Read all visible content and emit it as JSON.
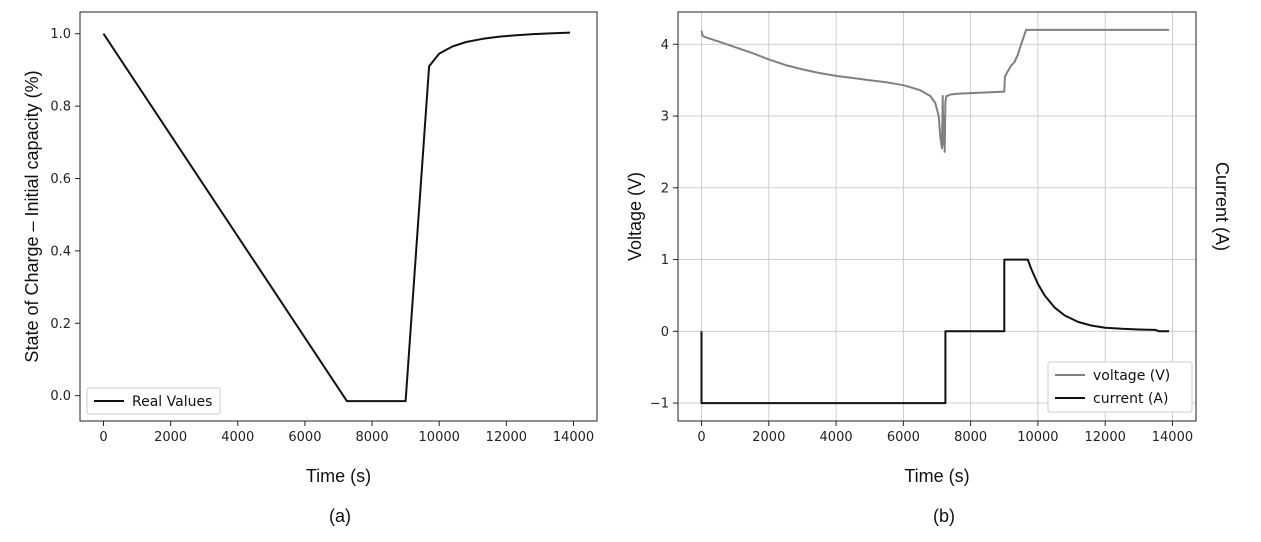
{
  "chart_data": [
    {
      "type": "line",
      "panel_label": "(a)",
      "xlabel": "Time (s)",
      "ylabel": "State of Charge – Initial capacity (%)",
      "xlim": [
        -700,
        14700
      ],
      "ylim": [
        -0.07,
        1.06
      ],
      "xticks": [
        0,
        2000,
        4000,
        6000,
        8000,
        10000,
        12000,
        14000
      ],
      "yticks": [
        0.0,
        0.2,
        0.4,
        0.6,
        0.8,
        1.0
      ],
      "ytick_labels": [
        "0.0",
        "0.2",
        "0.4",
        "0.6",
        "0.8",
        "1.0"
      ],
      "grid": false,
      "legend_position": "lower-left",
      "series": [
        {
          "name": "Real Values",
          "color": "#111111",
          "x": [
            0,
            7250,
            9000,
            9700,
            10000,
            10400,
            10800,
            11300,
            11800,
            12300,
            12800,
            13300,
            13900
          ],
          "y": [
            1.0,
            -0.015,
            -0.015,
            0.91,
            0.945,
            0.965,
            0.977,
            0.986,
            0.992,
            0.996,
            0.999,
            1.001,
            1.003
          ]
        }
      ]
    },
    {
      "type": "line",
      "panel_label": "(b)",
      "xlabel": "Time (s)",
      "ylabel": "Voltage (V)",
      "ylabel_right": "Current (A)",
      "xlim": [
        -700,
        14700
      ],
      "ylim": [
        -1.25,
        4.45
      ],
      "xticks": [
        0,
        2000,
        4000,
        6000,
        8000,
        10000,
        12000,
        14000
      ],
      "yticks": [
        -1,
        0,
        1,
        2,
        3,
        4
      ],
      "ytick_labels": [
        "−1",
        "0",
        "1",
        "2",
        "3",
        "4"
      ],
      "grid": true,
      "legend_position": "lower-right",
      "series": [
        {
          "name": " voltage (V)",
          "color": "#808080",
          "x": [
            0,
            30,
            100,
            500,
            1000,
            1500,
            2000,
            2500,
            3000,
            3500,
            4000,
            4500,
            5000,
            5500,
            6000,
            6500,
            6800,
            6950,
            7050,
            7100,
            7130,
            7150,
            7170,
            7190,
            7210,
            7230,
            7250,
            7280,
            7300,
            7400,
            7600,
            8000,
            8500,
            9000,
            9020,
            9100,
            9200,
            9300,
            9400,
            9500,
            9650,
            9700,
            10000,
            11000,
            12000,
            13000,
            13900
          ],
          "y": [
            4.19,
            4.12,
            4.1,
            4.04,
            3.96,
            3.88,
            3.79,
            3.71,
            3.65,
            3.6,
            3.56,
            3.53,
            3.5,
            3.47,
            3.43,
            3.36,
            3.28,
            3.18,
            3.0,
            2.7,
            2.6,
            2.55,
            3.28,
            2.6,
            3.0,
            2.5,
            3.2,
            3.28,
            3.28,
            3.3,
            3.31,
            3.32,
            3.33,
            3.34,
            3.55,
            3.62,
            3.7,
            3.75,
            3.85,
            4.0,
            4.2,
            4.2,
            4.2,
            4.2,
            4.2,
            4.2,
            4.2
          ]
        },
        {
          "name": "current (A)",
          "color": "#111111",
          "x": [
            0,
            0,
            20,
            7250,
            7250,
            9000,
            9000,
            9700,
            9800,
            10000,
            10200,
            10500,
            10800,
            11200,
            11600,
            12000,
            12500,
            13000,
            13500,
            13600,
            13900
          ],
          "y": [
            0.0,
            -1.0,
            -1.0,
            -1.0,
            0.0,
            0.0,
            1.0,
            1.0,
            0.87,
            0.66,
            0.5,
            0.33,
            0.22,
            0.13,
            0.08,
            0.05,
            0.035,
            0.025,
            0.02,
            0.0,
            0.0
          ]
        }
      ]
    }
  ]
}
